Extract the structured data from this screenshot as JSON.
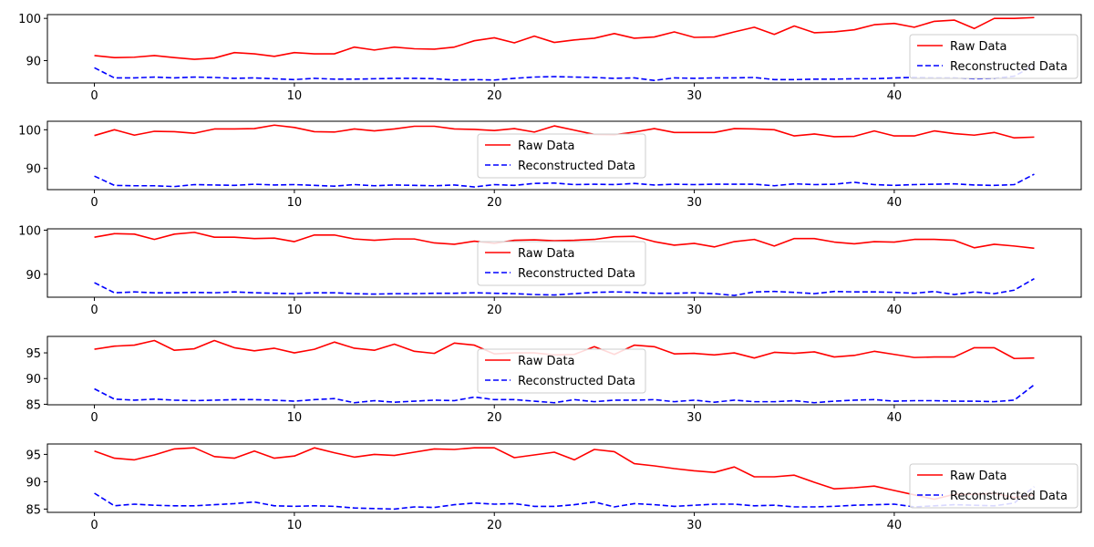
{
  "colors": {
    "raw": "#ff0000",
    "recon": "#0000ff",
    "axis": "#000000",
    "legend_border": "#cccccc"
  },
  "chart_data": [
    {
      "type": "line",
      "xlim": [
        -2.35,
        49.35
      ],
      "ylim": [
        84.7,
        100.9
      ],
      "xticks": [
        0,
        10,
        20,
        30,
        40
      ],
      "yticks": [
        90,
        100
      ],
      "legend": "right",
      "grid": false,
      "series": [
        {
          "name": "Raw Data",
          "style": "solid",
          "values": [
            91.2,
            90.7,
            90.8,
            91.2,
            90.7,
            90.3,
            90.6,
            91.9,
            91.6,
            91.0,
            91.9,
            91.6,
            91.6,
            93.2,
            92.5,
            93.2,
            92.8,
            92.7,
            93.2,
            94.7,
            95.4,
            94.2,
            95.8,
            94.3,
            94.9,
            95.3,
            96.4,
            95.3,
            95.6,
            96.8,
            95.5,
            95.6,
            96.8,
            97.9,
            96.2,
            98.2,
            96.6,
            96.8,
            97.3,
            98.5,
            98.8,
            97.9,
            99.3,
            99.6,
            97.6,
            100.0,
            100.0,
            100.2
          ]
        },
        {
          "name": "Reconstructed Data",
          "style": "dashed",
          "values": [
            88.3,
            85.9,
            85.9,
            86.1,
            85.9,
            86.1,
            86.0,
            85.8,
            85.9,
            85.7,
            85.5,
            85.8,
            85.6,
            85.6,
            85.7,
            85.8,
            85.8,
            85.7,
            85.4,
            85.5,
            85.4,
            85.8,
            86.1,
            86.2,
            86.1,
            86.0,
            85.8,
            85.9,
            85.3,
            85.9,
            85.8,
            85.9,
            85.9,
            86.0,
            85.5,
            85.5,
            85.6,
            85.6,
            85.7,
            85.7,
            85.9,
            86.0,
            85.9,
            85.9,
            85.7,
            85.8,
            86.3,
            88.9
          ]
        }
      ]
    },
    {
      "type": "line",
      "xlim": [
        -2.35,
        49.35
      ],
      "ylim": [
        84.5,
        102.2
      ],
      "xticks": [
        0,
        10,
        20,
        30,
        40
      ],
      "yticks": [
        90,
        100
      ],
      "legend": "upper-center",
      "grid": false,
      "series": [
        {
          "name": "Raw Data",
          "style": "solid",
          "values": [
            98.5,
            100.0,
            98.6,
            99.6,
            99.5,
            99.1,
            100.2,
            100.2,
            100.3,
            101.2,
            100.6,
            99.5,
            99.4,
            100.2,
            99.7,
            100.2,
            100.9,
            100.9,
            100.2,
            100.1,
            99.8,
            100.3,
            99.4,
            101.0,
            99.9,
            98.8,
            98.7,
            99.4,
            100.3,
            99.3,
            99.3,
            99.3,
            100.3,
            100.2,
            100.0,
            98.4,
            98.9,
            98.2,
            98.3,
            99.7,
            98.4,
            98.4,
            99.7,
            99.0,
            98.6,
            99.3,
            97.9,
            98.1
          ]
        },
        {
          "name": "Reconstructed Data",
          "style": "dashed",
          "values": [
            88.0,
            85.6,
            85.5,
            85.5,
            85.3,
            85.8,
            85.7,
            85.6,
            85.9,
            85.7,
            85.8,
            85.6,
            85.4,
            85.8,
            85.5,
            85.7,
            85.6,
            85.5,
            85.7,
            85.2,
            85.8,
            85.6,
            86.1,
            86.2,
            85.8,
            85.9,
            85.8,
            86.1,
            85.7,
            85.9,
            85.8,
            85.9,
            85.9,
            85.9,
            85.5,
            86.0,
            85.8,
            85.9,
            86.4,
            85.8,
            85.6,
            85.8,
            85.9,
            86.0,
            85.7,
            85.6,
            85.8,
            88.5
          ]
        }
      ]
    },
    {
      "type": "line",
      "xlim": [
        -2.35,
        49.35
      ],
      "ylim": [
        84.8,
        100.3
      ],
      "xticks": [
        0,
        10,
        20,
        30,
        40
      ],
      "yticks": [
        90,
        100
      ],
      "legend": "upper-center",
      "grid": false,
      "series": [
        {
          "name": "Raw Data",
          "style": "solid",
          "values": [
            98.4,
            99.2,
            99.1,
            97.9,
            99.1,
            99.5,
            98.4,
            98.4,
            98.1,
            98.2,
            97.4,
            98.9,
            98.9,
            98.0,
            97.7,
            98.0,
            98.0,
            97.1,
            96.8,
            97.5,
            97.0,
            97.7,
            97.8,
            97.6,
            97.7,
            97.9,
            98.5,
            98.6,
            97.4,
            96.6,
            97.0,
            96.2,
            97.4,
            97.9,
            96.4,
            98.1,
            98.1,
            97.3,
            96.9,
            97.4,
            97.3,
            97.9,
            97.9,
            97.7,
            96.0,
            96.8,
            96.4,
            95.9
          ]
        },
        {
          "name": "Reconstructed Data",
          "style": "dashed",
          "values": [
            88.1,
            85.8,
            86.0,
            85.8,
            85.8,
            85.9,
            85.8,
            86.0,
            85.8,
            85.7,
            85.6,
            85.8,
            85.8,
            85.6,
            85.5,
            85.6,
            85.6,
            85.7,
            85.7,
            85.8,
            85.7,
            85.6,
            85.4,
            85.3,
            85.6,
            85.9,
            86.0,
            85.9,
            85.7,
            85.7,
            85.8,
            85.6,
            85.2,
            86.0,
            86.1,
            85.9,
            85.6,
            86.1,
            86.0,
            86.0,
            85.9,
            85.7,
            86.1,
            85.4,
            86.0,
            85.6,
            86.4,
            89.0
          ]
        }
      ]
    },
    {
      "type": "line",
      "xlim": [
        -2.35,
        49.35
      ],
      "ylim": [
        84.9,
        98.2
      ],
      "xticks": [
        0,
        10,
        20,
        30,
        40
      ],
      "yticks": [
        85,
        90,
        95
      ],
      "legend": "upper-center",
      "grid": false,
      "series": [
        {
          "name": "Raw Data",
          "style": "solid",
          "values": [
            95.7,
            96.3,
            96.5,
            97.4,
            95.5,
            95.8,
            97.4,
            96.0,
            95.4,
            95.9,
            95.0,
            95.7,
            97.1,
            95.9,
            95.5,
            96.7,
            95.3,
            94.9,
            96.9,
            96.5,
            94.8,
            95.0,
            95.0,
            94.6,
            94.7,
            96.2,
            94.7,
            96.5,
            96.2,
            94.8,
            94.9,
            94.6,
            95.0,
            94.0,
            95.1,
            94.9,
            95.2,
            94.2,
            94.5,
            95.3,
            94.7,
            94.1,
            94.2,
            94.2,
            96.0,
            96.0,
            93.9,
            94.0
          ]
        },
        {
          "name": "Reconstructed Data",
          "style": "dashed",
          "values": [
            88.0,
            86.0,
            85.8,
            86.0,
            85.8,
            85.7,
            85.8,
            85.9,
            85.9,
            85.8,
            85.6,
            85.9,
            86.1,
            85.3,
            85.7,
            85.4,
            85.6,
            85.8,
            85.7,
            86.4,
            85.9,
            85.9,
            85.6,
            85.3,
            85.9,
            85.5,
            85.8,
            85.8,
            85.9,
            85.5,
            85.8,
            85.4,
            85.8,
            85.5,
            85.5,
            85.7,
            85.3,
            85.6,
            85.8,
            85.9,
            85.6,
            85.7,
            85.7,
            85.6,
            85.6,
            85.5,
            85.8,
            88.8
          ]
        }
      ]
    },
    {
      "type": "line",
      "xlim": [
        -2.35,
        49.35
      ],
      "ylim": [
        84.4,
        96.9
      ],
      "xticks": [
        0,
        10,
        20,
        30,
        40
      ],
      "yticks": [
        85,
        90,
        95
      ],
      "legend": "right",
      "grid": false,
      "series": [
        {
          "name": "Raw Data",
          "style": "solid",
          "values": [
            95.6,
            94.3,
            94.0,
            94.9,
            96.0,
            96.2,
            94.6,
            94.3,
            95.6,
            94.3,
            94.7,
            96.2,
            95.3,
            94.5,
            95.0,
            94.8,
            95.4,
            96.0,
            95.9,
            96.2,
            96.2,
            94.4,
            94.9,
            95.4,
            94.0,
            95.9,
            95.5,
            93.3,
            92.9,
            92.4,
            92.0,
            91.7,
            92.7,
            90.9,
            90.9,
            91.2,
            89.9,
            88.7,
            88.9,
            89.2,
            88.4,
            87.6,
            86.8,
            87.7,
            87.7,
            87.9,
            87.1,
            87.6
          ]
        },
        {
          "name": "Reconstructed Data",
          "style": "dashed",
          "values": [
            87.9,
            85.6,
            85.9,
            85.7,
            85.6,
            85.6,
            85.8,
            86.0,
            86.3,
            85.6,
            85.5,
            85.6,
            85.5,
            85.2,
            85.1,
            85.0,
            85.4,
            85.3,
            85.8,
            86.1,
            85.9,
            86.0,
            85.5,
            85.5,
            85.8,
            86.3,
            85.4,
            86.0,
            85.8,
            85.5,
            85.7,
            85.9,
            85.9,
            85.6,
            85.7,
            85.4,
            85.4,
            85.5,
            85.7,
            85.8,
            85.9,
            85.4,
            85.6,
            85.8,
            85.7,
            85.6,
            86.1,
            89.1
          ]
        }
      ]
    }
  ]
}
